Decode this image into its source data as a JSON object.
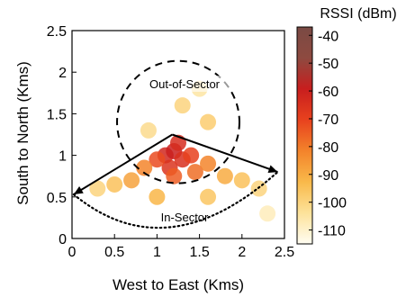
{
  "chart_data": {
    "type": "heatmap",
    "title": "",
    "xlabel": "West to East (Kms)",
    "ylabel": "South to North (Kms)",
    "xlim": [
      0,
      2.5
    ],
    "ylim": [
      0,
      2.5
    ],
    "xticks": [
      "0",
      "0.5",
      "1",
      "1.5",
      "2",
      "2.5"
    ],
    "yticks": [
      "0",
      "0.5",
      "1",
      "1.5",
      "2",
      "2.5"
    ],
    "colorbar": {
      "title": "RSSI (dBm)",
      "ticks": [
        "-40",
        "-50",
        "-60",
        "-70",
        "-80",
        "-90",
        "-100",
        "-110"
      ],
      "range": [
        -115,
        -37
      ],
      "colors": [
        "#fffdf2",
        "#fde29a",
        "#f9b94a",
        "#f3832b",
        "#e8421e",
        "#c81e1e",
        "#8e4a40",
        "#7a4a44"
      ]
    },
    "tower_location": [
      1.18,
      1.25
    ],
    "sector_boundary_ends": [
      [
        0.02,
        0.53
      ],
      [
        2.42,
        0.8
      ]
    ],
    "sector_circle": {
      "center": [
        1.25,
        1.4
      ],
      "radius": 0.72
    },
    "annotations": [
      "Out-of-Sector",
      "In-Sector"
    ],
    "points": [
      {
        "x": 1.1,
        "y": 1.0,
        "rssi": -62
      },
      {
        "x": 1.2,
        "y": 1.05,
        "rssi": -60
      },
      {
        "x": 1.3,
        "y": 0.95,
        "rssi": -65
      },
      {
        "x": 1.15,
        "y": 0.85,
        "rssi": -66
      },
      {
        "x": 1.25,
        "y": 1.15,
        "rssi": -64
      },
      {
        "x": 1.4,
        "y": 1.0,
        "rssi": -70
      },
      {
        "x": 1.0,
        "y": 0.95,
        "rssi": -72
      },
      {
        "x": 1.2,
        "y": 0.75,
        "rssi": -75
      },
      {
        "x": 1.45,
        "y": 0.8,
        "rssi": -78
      },
      {
        "x": 0.85,
        "y": 0.85,
        "rssi": -82
      },
      {
        "x": 1.6,
        "y": 0.9,
        "rssi": -82
      },
      {
        "x": 0.7,
        "y": 0.7,
        "rssi": -88
      },
      {
        "x": 1.8,
        "y": 0.75,
        "rssi": -90
      },
      {
        "x": 0.5,
        "y": 0.65,
        "rssi": -95
      },
      {
        "x": 2.0,
        "y": 0.7,
        "rssi": -95
      },
      {
        "x": 0.3,
        "y": 0.6,
        "rssi": -100
      },
      {
        "x": 2.2,
        "y": 0.6,
        "rssi": -100
      },
      {
        "x": 1.3,
        "y": 1.6,
        "rssi": -100
      },
      {
        "x": 1.5,
        "y": 1.8,
        "rssi": -105
      },
      {
        "x": 1.6,
        "y": 1.4,
        "rssi": -98
      },
      {
        "x": 0.9,
        "y": 1.3,
        "rssi": -102
      },
      {
        "x": 2.3,
        "y": 0.3,
        "rssi": -108
      },
      {
        "x": 1.0,
        "y": 0.5,
        "rssi": -92
      },
      {
        "x": 1.6,
        "y": 0.5,
        "rssi": -96
      }
    ]
  }
}
